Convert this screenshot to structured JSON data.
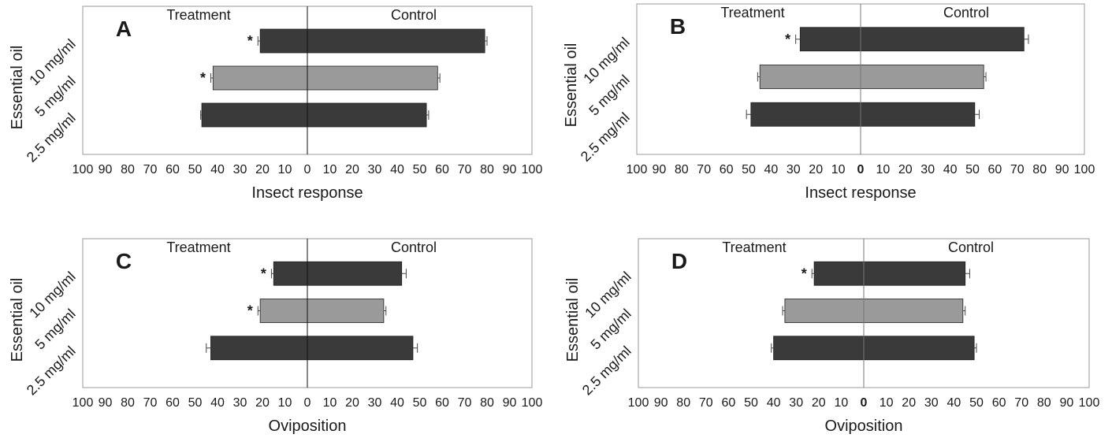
{
  "chart_data": [
    {
      "type": "bar",
      "orientation": "horizontal-diverging",
      "panel_label": "A",
      "left_header": "Treatment",
      "right_header": "Control",
      "ylabel": "Essential oil",
      "xlabel": "Insect response",
      "xlim": [
        -100,
        100
      ],
      "x_tick_labels": [
        "100",
        "90",
        "80",
        "70",
        "60",
        "50",
        "40",
        "30",
        "20",
        "10",
        "0",
        "10",
        "20",
        "30",
        "40",
        "50",
        "60",
        "70",
        "80",
        "90",
        "100"
      ],
      "zero_bold": false,
      "categories": [
        "10 mg/ml",
        "5 mg/ml",
        "2.5 mg/ml"
      ],
      "series": [
        {
          "values": [
            21,
            42,
            47
          ],
          "errors": [
            1,
            1,
            0.5
          ],
          "side": "treatment"
        },
        {
          "values": [
            79,
            58,
            53
          ],
          "errors": [
            1,
            1,
            1
          ],
          "side": "control"
        }
      ],
      "bar_colors": [
        "#3a3a3a",
        "#9a9a9a",
        "#3a3a3a"
      ],
      "significant": [
        "*",
        "*",
        ""
      ]
    },
    {
      "type": "bar",
      "orientation": "horizontal-diverging",
      "panel_label": "B",
      "left_header": "Treatment",
      "right_header": "Control",
      "ylabel": "Essential oil",
      "xlabel": "Insect response",
      "xlim": [
        -100,
        100
      ],
      "x_tick_labels": [
        "100",
        "90",
        "80",
        "70",
        "60",
        "50",
        "40",
        "30",
        "20",
        "10",
        "0",
        "10",
        "20",
        "30",
        "40",
        "50",
        "60",
        "70",
        "80",
        "90",
        "100"
      ],
      "zero_bold": true,
      "categories": [
        "10 mg/ml",
        "5 mg/ml",
        "2.5 mg/ml"
      ],
      "series": [
        {
          "values": [
            27,
            45,
            49
          ],
          "errors": [
            2,
            1,
            2
          ],
          "side": "treatment"
        },
        {
          "values": [
            73,
            55,
            51
          ],
          "errors": [
            2,
            1,
            2
          ],
          "side": "control"
        }
      ],
      "bar_colors": [
        "#3a3a3a",
        "#9a9a9a",
        "#3a3a3a"
      ],
      "significant": [
        "*",
        "",
        ""
      ]
    },
    {
      "type": "bar",
      "orientation": "horizontal-diverging",
      "panel_label": "C",
      "left_header": "Treatment",
      "right_header": "Control",
      "ylabel": "Essential oil",
      "xlabel": "Oviposition",
      "xlim": [
        -100,
        100
      ],
      "x_tick_labels": [
        "100",
        "90",
        "80",
        "70",
        "60",
        "50",
        "40",
        "30",
        "20",
        "10",
        "0",
        "10",
        "20",
        "30",
        "40",
        "50",
        "60",
        "70",
        "80",
        "90",
        "100"
      ],
      "zero_bold": false,
      "categories": [
        "10 mg/ml",
        "5 mg/ml",
        "2.5 mg/ml"
      ],
      "series": [
        {
          "values": [
            15,
            21,
            43
          ],
          "errors": [
            1,
            1,
            2
          ],
          "side": "treatment"
        },
        {
          "values": [
            42,
            34,
            47
          ],
          "errors": [
            2,
            1,
            2
          ],
          "side": "control"
        }
      ],
      "bar_colors": [
        "#3a3a3a",
        "#9a9a9a",
        "#3a3a3a"
      ],
      "significant": [
        "*",
        "*",
        ""
      ]
    },
    {
      "type": "bar",
      "orientation": "horizontal-diverging",
      "panel_label": "D",
      "left_header": "Treatment",
      "right_header": "Control",
      "ylabel": "Essential oil",
      "xlabel": "Oviposition",
      "xlim": [
        -100,
        100
      ],
      "x_tick_labels": [
        "100",
        "90",
        "80",
        "70",
        "60",
        "50",
        "40",
        "30",
        "20",
        "10",
        "0",
        "10",
        "20",
        "30",
        "40",
        "50",
        "60",
        "70",
        "80",
        "90",
        "100"
      ],
      "zero_bold": true,
      "categories": [
        "10 mg/ml",
        "5 mg/ml",
        "2.5 mg/ml"
      ],
      "series": [
        {
          "values": [
            22,
            35,
            40
          ],
          "errors": [
            1,
            1,
            1
          ],
          "side": "treatment"
        },
        {
          "values": [
            45,
            44,
            49
          ],
          "errors": [
            2,
            1,
            1
          ],
          "side": "control"
        }
      ],
      "bar_colors": [
        "#3a3a3a",
        "#9a9a9a",
        "#3a3a3a"
      ],
      "significant": [
        "*",
        "",
        ""
      ]
    }
  ]
}
